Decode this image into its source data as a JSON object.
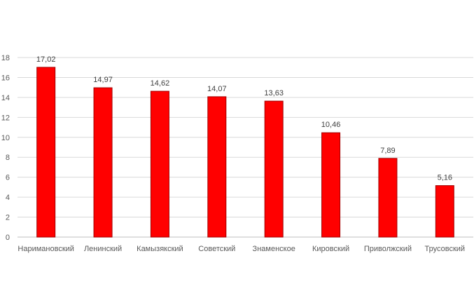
{
  "chart_data": {
    "type": "bar",
    "categories": [
      "Наримановский",
      "Ленинский",
      "Камызякский",
      "Советский",
      "Знаменское",
      "Кировский",
      "Приволжский",
      "Трусовский"
    ],
    "values": [
      17.02,
      14.97,
      14.62,
      14.07,
      13.63,
      10.46,
      7.89,
      5.16
    ],
    "value_labels": [
      "17,02",
      "14,97",
      "14,62",
      "14,07",
      "13,63",
      "10,46",
      "7,89",
      "5,16"
    ],
    "y_ticks": [
      "0",
      "2",
      "4",
      "6",
      "8",
      "10",
      "12",
      "14",
      "16",
      "18"
    ],
    "ylim": [
      0,
      18
    ],
    "grid": true,
    "legend": "none",
    "colors": {
      "bar": "#ff0000",
      "bar_edge": "#a00000",
      "grid": "#d9d9d9",
      "axis": "#bfbfbf"
    }
  }
}
